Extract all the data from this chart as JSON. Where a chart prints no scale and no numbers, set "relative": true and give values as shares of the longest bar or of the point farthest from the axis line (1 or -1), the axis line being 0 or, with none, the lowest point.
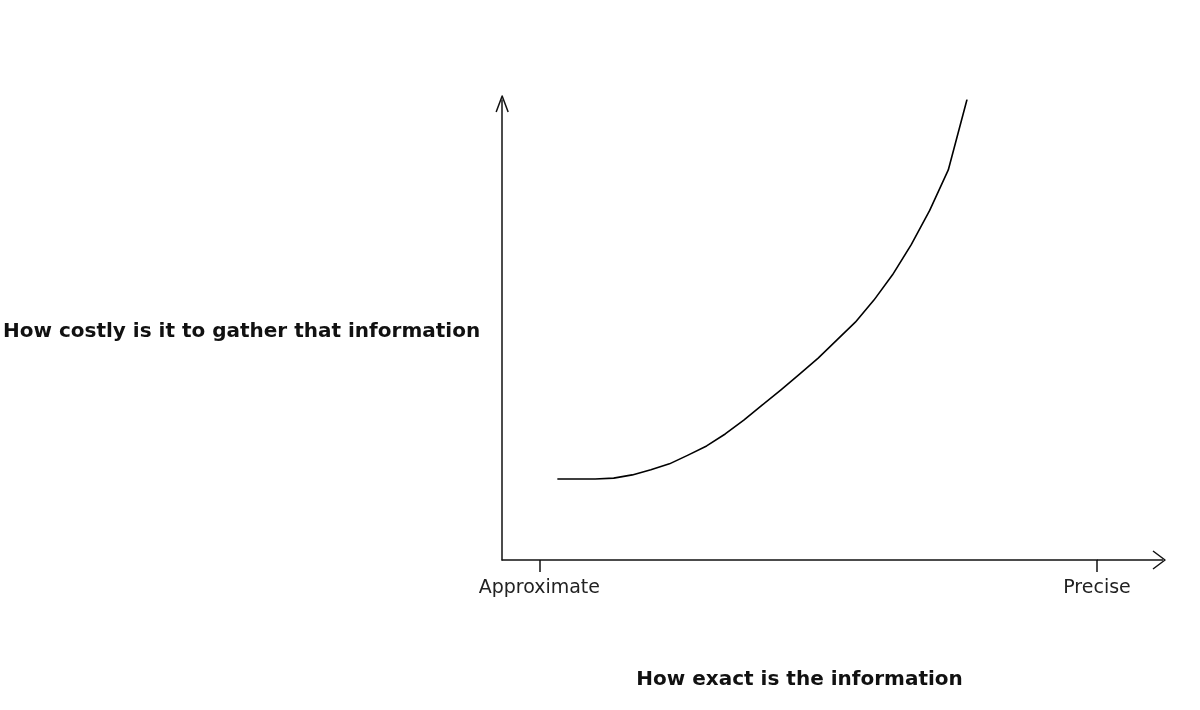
{
  "chart_data": {
    "type": "line",
    "relative": true,
    "xlabel": "How exact is the information",
    "ylabel": "How costly is it to gather that information",
    "categories": [
      null,
      null,
      "Approximate",
      null,
      null,
      null,
      null,
      null,
      null,
      null,
      null,
      null,
      null,
      null,
      null,
      null,
      null,
      null,
      null,
      null,
      null,
      null,
      null,
      null,
      null,
      null,
      null,
      null,
      null,
      null,
      null,
      null,
      "Precise"
    ],
    "series": [
      {
        "color": "#000000",
        "values": [
          null,
          null,
          null,
          0.176,
          0.176,
          0.176,
          0.178,
          0.185,
          0.196,
          0.209,
          0.228,
          0.248,
          0.274,
          0.304,
          0.337,
          0.37,
          0.404,
          0.439,
          0.478,
          0.517,
          0.565,
          0.62,
          0.685,
          0.76,
          0.848,
          1,
          null,
          null,
          null,
          null,
          null,
          null,
          null
        ]
      }
    ],
    "grid": false,
    "marker": "none",
    "line_style": "solid"
  }
}
